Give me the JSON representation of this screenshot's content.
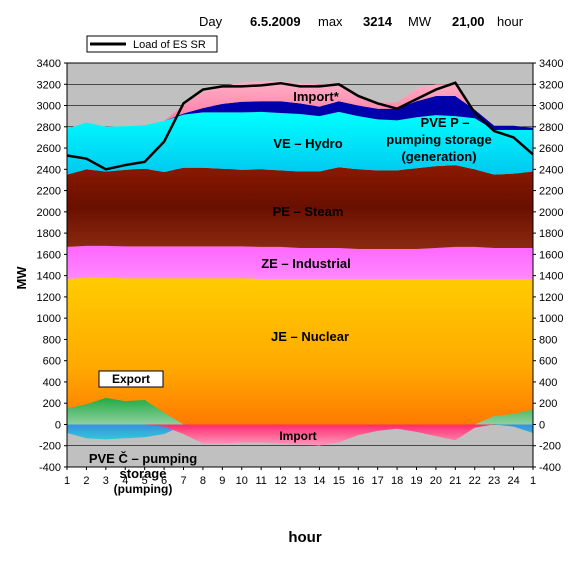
{
  "header": {
    "day_label": "Day",
    "date": "6.5.2009",
    "max_label": "max",
    "max_value": "3214",
    "unit": "MW",
    "hour_value": "21,00",
    "hour_label": "hour"
  },
  "legend": {
    "line_label": "Load of ES SR"
  },
  "colors": {
    "nuclear": "#ffcc00",
    "industrial": "#ff66ff",
    "steam": "#8b1a00",
    "hydro": "#00e0ff",
    "pvep": "#0000aa",
    "import_top": "#ff8fa8",
    "pumping": "#2a7fd4",
    "import_bottom": "#ff2a6a",
    "export": "#22aa44",
    "load": "#000000"
  },
  "chart_data": {
    "type": "area",
    "title": "",
    "xlabel": "hour",
    "ylabel": "MW",
    "ylim": [
      -400,
      3400
    ],
    "y_ticks": [
      -400,
      -200,
      0,
      200,
      400,
      600,
      800,
      1000,
      1200,
      1400,
      1600,
      1800,
      2000,
      2200,
      2400,
      2600,
      2800,
      3000,
      3200,
      3400
    ],
    "x_ticks": [
      "1",
      "2",
      "3",
      "4",
      "5",
      "6",
      "7",
      "8",
      "9",
      "10",
      "11",
      "12",
      "13",
      "14",
      "15",
      "16",
      "17",
      "18",
      "19",
      "20",
      "21",
      "22",
      "23",
      "24",
      "1"
    ],
    "stacked_series": [
      {
        "name": "JE – Nuclear",
        "values": [
          1370,
          1380,
          1380,
          1375,
          1375,
          1375,
          1375,
          1375,
          1375,
          1375,
          1370,
          1370,
          1370,
          1370,
          1370,
          1370,
          1370,
          1370,
          1370,
          1370,
          1370,
          1370,
          1370,
          1370,
          1370
        ]
      },
      {
        "name": "ZE – Industrial",
        "values": [
          300,
          300,
          300,
          300,
          300,
          300,
          300,
          300,
          300,
          300,
          300,
          300,
          290,
          290,
          290,
          280,
          280,
          280,
          280,
          290,
          300,
          300,
          290,
          290,
          290
        ]
      },
      {
        "name": "PE – Steam",
        "values": [
          680,
          720,
          700,
          720,
          730,
          700,
          740,
          740,
          730,
          720,
          730,
          720,
          720,
          720,
          760,
          750,
          740,
          740,
          760,
          770,
          770,
          730,
          690,
          700,
          720
        ]
      },
      {
        "name": "VE – Hydro",
        "values": [
          430,
          440,
          420,
          410,
          410,
          480,
          500,
          520,
          530,
          540,
          540,
          540,
          540,
          520,
          520,
          500,
          480,
          470,
          480,
          480,
          460,
          480,
          420,
          410,
          390
        ]
      },
      {
        "name": "PVE P – pumping storage (generation)",
        "values": [
          0,
          0,
          0,
          0,
          0,
          0,
          10,
          40,
          80,
          100,
          100,
          110,
          100,
          90,
          100,
          100,
          100,
          110,
          150,
          180,
          190,
          80,
          40,
          40,
          20
        ]
      },
      {
        "name": "Import*",
        "values": [
          0,
          0,
          0,
          0,
          0,
          0,
          80,
          150,
          170,
          180,
          190,
          190,
          190,
          210,
          170,
          100,
          60,
          60,
          120,
          110,
          110,
          0,
          0,
          0,
          0
        ]
      }
    ],
    "below_series": [
      {
        "name": "PVE Č – pumping storage (pumping)",
        "values": [
          -80,
          -130,
          -140,
          -130,
          -120,
          -90,
          -10,
          0,
          0,
          0,
          0,
          0,
          0,
          0,
          0,
          0,
          0,
          0,
          0,
          0,
          0,
          0,
          0,
          -20,
          -80
        ]
      },
      {
        "name": "Import",
        "values": [
          0,
          0,
          0,
          0,
          0,
          -20,
          -90,
          -180,
          -180,
          -170,
          -170,
          -180,
          -190,
          -200,
          -170,
          -100,
          -60,
          -40,
          -70,
          -110,
          -150,
          -30,
          0,
          0,
          0
        ]
      }
    ],
    "export_series": {
      "name": "Export",
      "values": [
        150,
        190,
        250,
        220,
        230,
        110,
        0,
        0,
        0,
        0,
        0,
        0,
        0,
        0,
        0,
        0,
        0,
        0,
        0,
        0,
        0,
        0,
        80,
        100,
        140
      ]
    },
    "line_series": {
      "name": "Load of ES SR",
      "values": [
        2530,
        2500,
        2400,
        2440,
        2470,
        2660,
        3020,
        3150,
        3180,
        3180,
        3190,
        3210,
        3180,
        3180,
        3200,
        3090,
        3020,
        2970,
        3060,
        3150,
        3214,
        2930,
        2760,
        2700,
        2540
      ]
    },
    "annotations": {
      "import_top": "Import*",
      "pvep_line1": "PVE P –",
      "pvep_line2": "pumping storage",
      "pvep_line3": "(generation)",
      "hydro": "VE – Hydro",
      "steam": "PE – Steam",
      "industrial": "ZE – Industrial",
      "nuclear": "JE – Nuclear",
      "export": "Export",
      "import_bottom": "Import",
      "pvec_line1": "PVE Č – pumping",
      "pvec_line2": "storage",
      "pvec_line3": "(pumping)"
    },
    "grid": true,
    "legend_position": "top-left"
  }
}
